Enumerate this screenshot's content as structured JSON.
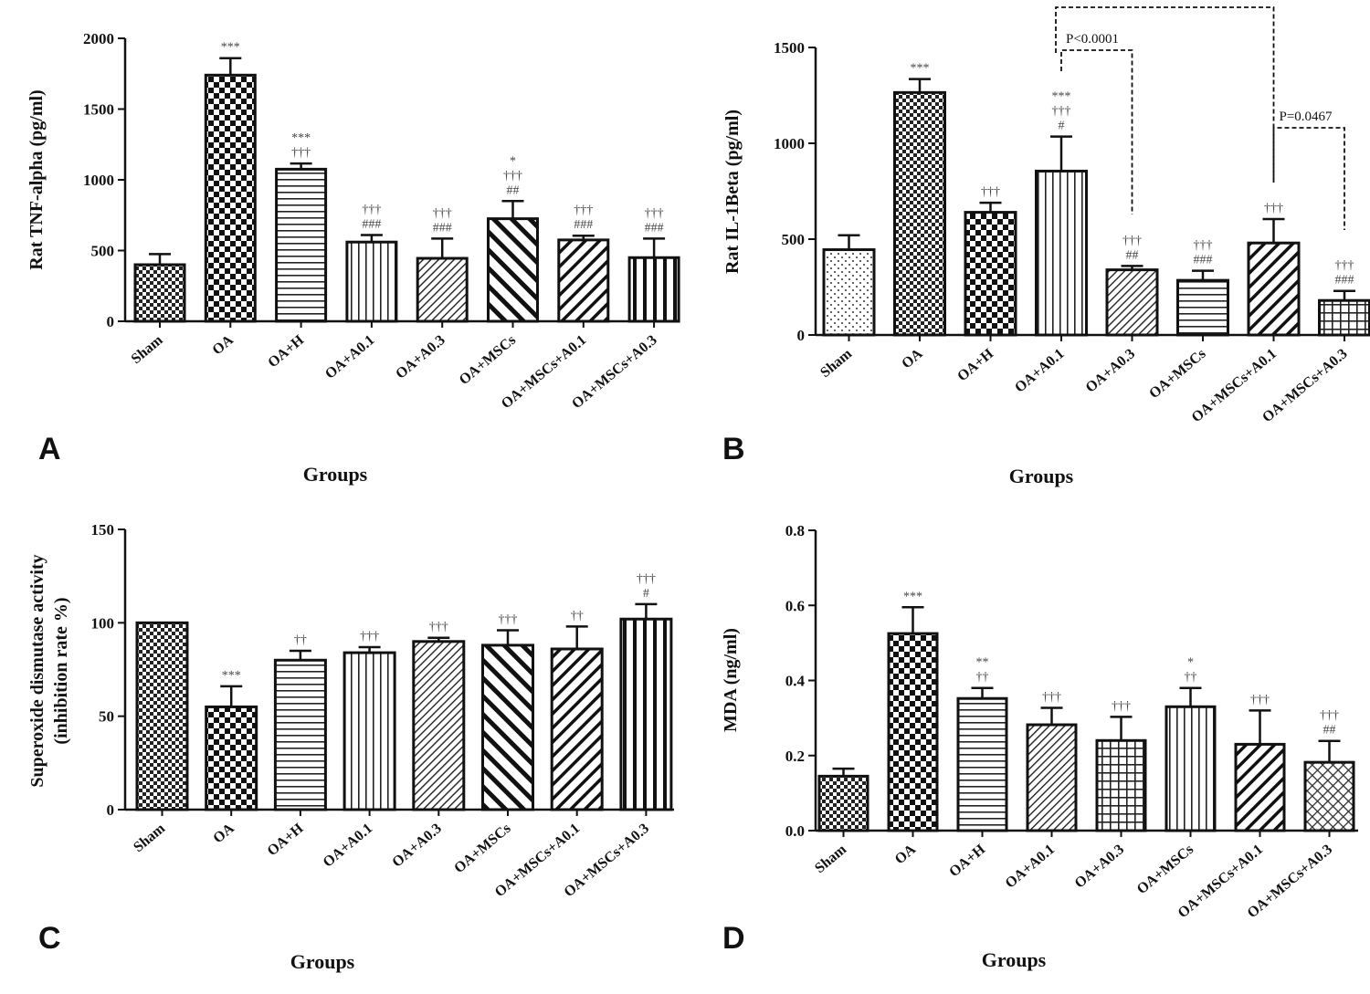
{
  "chart_data": [
    {
      "type": "bar",
      "panel": "A",
      "ylabel": "Rat TNF-alpha (pg/ml)",
      "xlabel": "Groups",
      "ylim": [
        0,
        2000
      ],
      "yticks": [
        0,
        500,
        1000,
        1500,
        2000
      ],
      "categories": [
        "Sham",
        "OA",
        "OA+H",
        "OA+A0.1",
        "OA+A0.3",
        "OA+MSCs",
        "OA+MSCs+A0.1",
        "OA+MSCs+A0.3"
      ],
      "values": [
        400,
        1740,
        1075,
        560,
        445,
        725,
        575,
        450
      ],
      "errors": [
        75,
        120,
        40,
        50,
        140,
        125,
        30,
        135
      ],
      "patterns": [
        "checker-small",
        "checker-large",
        "hlines",
        "vlines",
        "diag-fine",
        "diag-thick",
        "diag-med",
        "vlines-thick"
      ],
      "annotations": [
        [],
        [
          "***"
        ],
        [
          "***",
          "†††"
        ],
        [
          "†††",
          "###"
        ],
        [
          "†††",
          "###"
        ],
        [
          "*",
          "†††",
          "##"
        ],
        [
          "†††",
          "###"
        ],
        [
          "†††",
          "###"
        ]
      ]
    },
    {
      "type": "bar",
      "panel": "B",
      "ylabel": "Rat IL-1Beta (pg/ml)",
      "xlabel": "Groups",
      "ylim": [
        0,
        1500
      ],
      "yticks": [
        0,
        500,
        1000,
        1500
      ],
      "categories": [
        "Sham",
        "OA",
        "OA+H",
        "OA+A0.1",
        "OA+A0.3",
        "OA+MSCs",
        "OA+MSCs+A0.1",
        "OA+MSCs+A0.3"
      ],
      "values": [
        445,
        1265,
        640,
        855,
        340,
        285,
        480,
        180
      ],
      "errors": [
        75,
        70,
        50,
        180,
        20,
        50,
        125,
        50
      ],
      "patterns": [
        "dots",
        "checker-small",
        "checker-large",
        "vlines",
        "diag-fine",
        "hlines",
        "diag-med",
        "grid"
      ],
      "annotations": [
        [],
        [
          "***"
        ],
        [
          "†††"
        ],
        [
          "***",
          "†††",
          "#"
        ],
        [
          "†††",
          "##"
        ],
        [
          "†††",
          "###"
        ],
        [
          "†††"
        ],
        [
          "†††",
          "###"
        ]
      ],
      "comparisons": [
        {
          "from": "OA+A0.1",
          "to": "OA+A0.3",
          "label": "P<0.0001"
        },
        {
          "from": "OA+MSCs+A0.1",
          "to": "OA+MSCs+A0.3",
          "label": "P=0.0467"
        },
        {
          "from": "OA+A0.1",
          "to": "OA+MSCs+A0.1",
          "label": ""
        }
      ]
    },
    {
      "type": "bar",
      "panel": "C",
      "ylabel": "Superoxide dismutase activity (inhibition rate %)",
      "ylabel_lines": [
        "Superoxide dismutase activity",
        "(inhibition rate %)"
      ],
      "xlabel": "Groups",
      "ylim": [
        0,
        150
      ],
      "yticks": [
        0,
        50,
        100,
        150
      ],
      "categories": [
        "Sham",
        "OA",
        "OA+H",
        "OA+A0.1",
        "OA+A0.3",
        "OA+MSCs",
        "OA+MSCs+A0.1",
        "OA+MSCs+A0.3"
      ],
      "values": [
        100,
        55,
        80,
        84,
        90,
        88,
        86,
        102
      ],
      "errors": [
        0,
        11,
        5,
        3,
        2,
        8,
        12,
        8
      ],
      "patterns": [
        "checker-small",
        "checker-large",
        "hlines",
        "vlines",
        "diag-fine",
        "diag-thick",
        "diag-med",
        "vlines-thick"
      ],
      "annotations": [
        [],
        [
          "***"
        ],
        [
          "††"
        ],
        [
          "†††"
        ],
        [
          "†††"
        ],
        [
          "†††"
        ],
        [
          "††"
        ],
        [
          "†††",
          "#"
        ]
      ]
    },
    {
      "type": "bar",
      "panel": "D",
      "ylabel": "MDA (ng/ml)",
      "xlabel": "Groups",
      "ylim": [
        0,
        0.8
      ],
      "yticks": [
        "0.0",
        "0.2",
        "0.4",
        "0.6",
        "0.8"
      ],
      "categories": [
        "Sham",
        "OA",
        "OA+H",
        "OA+A0.1",
        "OA+A0.3",
        "OA+MSCs",
        "OA+MSCs+A0.1",
        "OA+MSCs+A0.3"
      ],
      "values": [
        0.145,
        0.525,
        0.352,
        0.282,
        0.24,
        0.33,
        0.23,
        0.182
      ],
      "errors": [
        0.02,
        0.07,
        0.028,
        0.045,
        0.063,
        0.05,
        0.09,
        0.057
      ],
      "patterns": [
        "checker-small",
        "checker-large",
        "hlines",
        "diag-fine",
        "grid",
        "vlines",
        "diag-med",
        "xhatch"
      ],
      "annotations": [
        [],
        [
          "***"
        ],
        [
          "**",
          "††"
        ],
        [
          "†††"
        ],
        [
          "†††"
        ],
        [
          "*",
          "††"
        ],
        [
          "†††"
        ],
        [
          "†††",
          "##"
        ]
      ]
    }
  ]
}
